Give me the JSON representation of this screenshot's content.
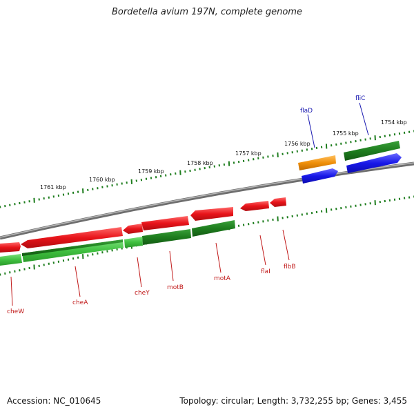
{
  "title": "Bordetella avium 197N, complete genome",
  "accession": "Accession: NC_010645",
  "summary": "Topology: circular; Length: 3,732,255 bp; Genes: 3,455",
  "colors": {
    "backbone": "#808080",
    "red_gene": "#e8141a",
    "dark_green_gene": "#1e7d1e",
    "light_green_gene": "#40c040",
    "orange_gene": "#f0900a",
    "blue_gene": "#1818e8",
    "red_label": "#c01818",
    "blue_label": "#1818b0",
    "tick_green": "#1e7d1e"
  },
  "scale": [
    "1754 kbp",
    "1755 kbp",
    "1756 kbp",
    "1757 kbp",
    "1758 kbp",
    "1759 kbp",
    "1760 kbp",
    "1761 kbp"
  ],
  "red_labels": [
    "cheW",
    "cheA",
    "cheY",
    "motB",
    "motA",
    "flaI",
    "flbB"
  ],
  "blue_labels": [
    "flaD",
    "fliC"
  ]
}
